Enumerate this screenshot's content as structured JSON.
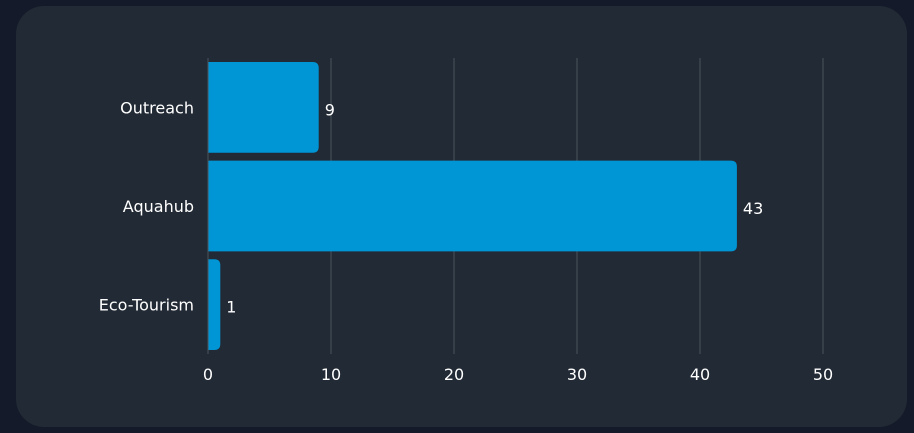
{
  "colors": {
    "page_background": "#141a29",
    "card_background": "#222a35",
    "bar": "#0096d6",
    "grid": "#4a525c",
    "text": "#ffffff"
  },
  "chart_data": {
    "type": "bar",
    "orientation": "horizontal",
    "categories": [
      "Outreach",
      "Aquahub",
      "Eco-Tourism"
    ],
    "values": [
      9,
      43,
      1
    ],
    "title": "",
    "xlabel": "",
    "ylabel": "",
    "xlim": [
      0,
      50
    ],
    "x_ticks": [
      0,
      10,
      20,
      30,
      40,
      50
    ],
    "grid": "vertical",
    "legend": "none",
    "data_labels": true
  }
}
